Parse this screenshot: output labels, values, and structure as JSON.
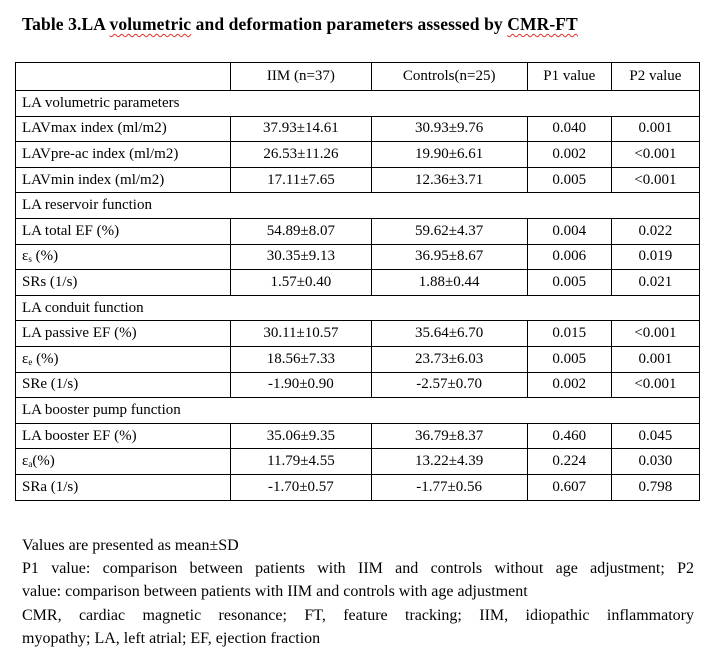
{
  "title": {
    "pre": "Table 3.LA ",
    "sq1": "volumetric",
    "mid": " and deformation parameters assessed by ",
    "sq2": "CMR-FT"
  },
  "headers": [
    "",
    "IIM (n=37)",
    "Controls(n=25)",
    "P1 value",
    "P2 value"
  ],
  "sections": [
    {
      "title": "LA volumetric parameters",
      "rows": [
        {
          "label": "LAVmax index (ml/m2)",
          "sub": "",
          "rest": "",
          "values": [
            "37.93±14.61",
            "30.93±9.76",
            "0.040",
            "0.001"
          ]
        },
        {
          "label": "LAVpre-ac index (ml/m2)",
          "sub": "",
          "rest": "",
          "values": [
            "26.53±11.26",
            "19.90±6.61",
            "0.002",
            "<0.001"
          ]
        },
        {
          "label": "LAVmin index (ml/m2)",
          "sub": "",
          "rest": "",
          "values": [
            "17.11±7.65",
            "12.36±3.71",
            "0.005",
            "<0.001"
          ]
        }
      ]
    },
    {
      "title": "LA reservoir function",
      "rows": [
        {
          "label": "LA total EF (%)",
          "sub": "",
          "rest": "",
          "values": [
            "54.89±8.07",
            "59.62±4.37",
            "0.004",
            "0.022"
          ]
        },
        {
          "label": "ε",
          "sub": "s",
          "rest": " (%)",
          "values": [
            "30.35±9.13",
            "36.95±8.67",
            "0.006",
            "0.019"
          ]
        },
        {
          "label": "SRs (1/s)",
          "sub": "",
          "rest": "",
          "values": [
            "1.57±0.40",
            "1.88±0.44",
            "0.005",
            "0.021"
          ]
        }
      ]
    },
    {
      "title": "LA conduit function",
      "rows": [
        {
          "label": "LA passive EF (%)",
          "sub": "",
          "rest": "",
          "values": [
            "30.11±10.57",
            "35.64±6.70",
            "0.015",
            "<0.001"
          ]
        },
        {
          "label": "ε",
          "sub": "e",
          "rest": " (%)",
          "values": [
            "18.56±7.33",
            "23.73±6.03",
            "0.005",
            "0.001"
          ]
        },
        {
          "label": "SRe (1/s)",
          "sub": "",
          "rest": "",
          "values": [
            "-1.90±0.90",
            "-2.57±0.70",
            "0.002",
            "<0.001"
          ]
        }
      ]
    },
    {
      "title": "LA booster pump function",
      "rows": [
        {
          "label": "LA booster EF (%)",
          "sub": "",
          "rest": "",
          "values": [
            "35.06±9.35",
            "36.79±8.37",
            "0.460",
            "0.045"
          ]
        },
        {
          "label": "ε",
          "sub": "a",
          "rest": "(%)",
          "values": [
            "11.79±4.55",
            "13.22±4.39",
            "0.224",
            "0.030"
          ]
        },
        {
          "label": "SRa (1/s)",
          "sub": "",
          "rest": "",
          "values": [
            "-1.70±0.57",
            "-1.77±0.56",
            "0.607",
            "0.798"
          ]
        }
      ]
    }
  ],
  "notes": {
    "n1": "Values are presented as mean±SD",
    "n2a": "P1 value: comparison between patients with IIM and controls without age adjustment; P2",
    "n2b": "value: comparison between patients with IIM and controls with age adjustment",
    "n3a": "CMR, cardiac magnetic resonance; FT, feature tracking; IIM, idiopathic inflammatory",
    "n3b": "myopathy; LA, left atrial; EF, ejection fraction"
  }
}
